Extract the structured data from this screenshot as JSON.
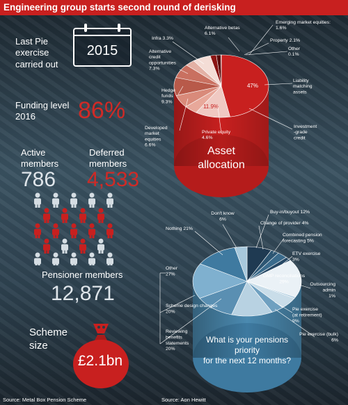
{
  "header": {
    "title": "Engineering group starts second round of derisking"
  },
  "left": {
    "last_pie_label": "Last Pie exercise carried out",
    "last_pie_year": "2015",
    "funding_label": "Funding level 2016",
    "funding_value": "86%",
    "active_label": "Active members",
    "active_value": "786",
    "deferred_label": "Deferred members",
    "deferred_value": "4,533",
    "pensioner_label": "Pensioner members",
    "pensioner_value": "12,871",
    "scheme_label": "Scheme size",
    "scheme_value": "£2.1bn",
    "source": "Source: Metal Box Pension Scheme"
  },
  "icons": {
    "calendar": "calendar-icon",
    "people": "person-icon",
    "moneybag": "money-bag-icon"
  },
  "colors": {
    "red": "#c8201f",
    "blue": "#4b8ab0",
    "dark": "#1f2c36"
  },
  "chart_data": [
    {
      "type": "pie",
      "title": "Asset allocation",
      "slices": [
        {
          "label": "Liability matching assets",
          "value": 47
        },
        {
          "label": "Investment-grade credit",
          "value": 11.9
        },
        {
          "label": "Private equity",
          "value": 4.6
        },
        {
          "label": "Developed market equities",
          "value": 6.6
        },
        {
          "label": "Hedge funds",
          "value": 9.3
        },
        {
          "label": "Alternative credit opportunities",
          "value": 7.3
        },
        {
          "label": "Infra",
          "value": 3.3
        },
        {
          "label": "Alternative betas",
          "value": 6.1
        },
        {
          "label": "Property",
          "value": 2.1
        },
        {
          "label": "Emerging market equities:",
          "value": 1.6
        },
        {
          "label": "Other",
          "value": 0.1
        }
      ],
      "display_labels": {
        "Liability matching assets": [
          "Liability",
          "matching",
          "assets"
        ],
        "Investment-grade credit": [
          "Investment",
          "-grade",
          "credit"
        ],
        "Private equity": [
          "Private equity",
          "4.6%"
        ],
        "Developed market equities": [
          "Developed",
          "market",
          "equities",
          "6.6%"
        ],
        "Hedge funds": [
          "Hedge",
          "funds",
          "9.3%"
        ],
        "Alternative credit opportunities": [
          "Alternative",
          "credit",
          "opportunities",
          "7.3%"
        ],
        "Infra": [
          "Infra 3.3%"
        ],
        "Alternative betas": [
          "Alternative betas",
          "6.1%"
        ],
        "Property": [
          "Property 2.1%"
        ],
        "Emerging market equities:": [
          "Emerging market equities:",
          "1.6%"
        ],
        "Other": [
          "Other",
          "0.1%"
        ]
      },
      "inside_labels": [
        "47%",
        "11.9%"
      ]
    },
    {
      "type": "pie",
      "title": "What is your pensions priority for the next 12 months?",
      "title_lines": [
        "What is your pensions",
        "priority",
        "for the next 12 months?"
      ],
      "slices": [
        {
          "label": "Buy-in/buyout",
          "value": 12
        },
        {
          "label": "Change of provider",
          "value": 4
        },
        {
          "label": "Combined pension forecasting",
          "value": 5
        },
        {
          "label": "ETV exercise",
          "value": 3
        },
        {
          "label": "GMP reconciliations",
          "value": 29
        },
        {
          "label": "Outsourcing admin",
          "value": 1
        },
        {
          "label": "Pie exercise (at retirement)",
          "value": 9
        },
        {
          "label": "Pie exercise (bulk)",
          "value": 6
        },
        {
          "label": "Reviewing benefits statements",
          "value": 20
        },
        {
          "label": "Scheme design changes",
          "value": 20
        },
        {
          "label": "Other",
          "value": 27
        },
        {
          "label": "Nothing",
          "value": 21
        },
        {
          "label": "Don't know",
          "value": 6
        }
      ],
      "display_labels": {
        "Buy-in/buyout": [
          "Buy-in/buyout 12%"
        ],
        "Change of provider": [
          "Change of provider 4%"
        ],
        "Combined pension forecasting": [
          "Combined pension",
          "forecasting 5%"
        ],
        "ETV exercise": [
          "ETV exercise",
          "3%"
        ],
        "GMP reconciliations": [
          "GMP reconciliations",
          "29%"
        ],
        "Outsourcing admin": [
          "Outsourcing",
          "admin",
          "1%"
        ],
        "Pie exercise (at retirement)": [
          "Pie exercise",
          "(at retirement)",
          "9%"
        ],
        "Pie exercise (bulk)": [
          "Pie exercise (bulk)",
          "6%"
        ],
        "Reviewing benefits statements": [
          "Reviewing",
          "benefits",
          "statements",
          "20%"
        ],
        "Scheme design changes": [
          "Scheme design changes",
          "20%"
        ],
        "Other": [
          "Other",
          "27%"
        ],
        "Nothing": [
          "Nothing 21%"
        ],
        "Don't know": [
          "Don't know",
          "6%"
        ]
      },
      "source": "Source: Aon Hewitt"
    }
  ]
}
